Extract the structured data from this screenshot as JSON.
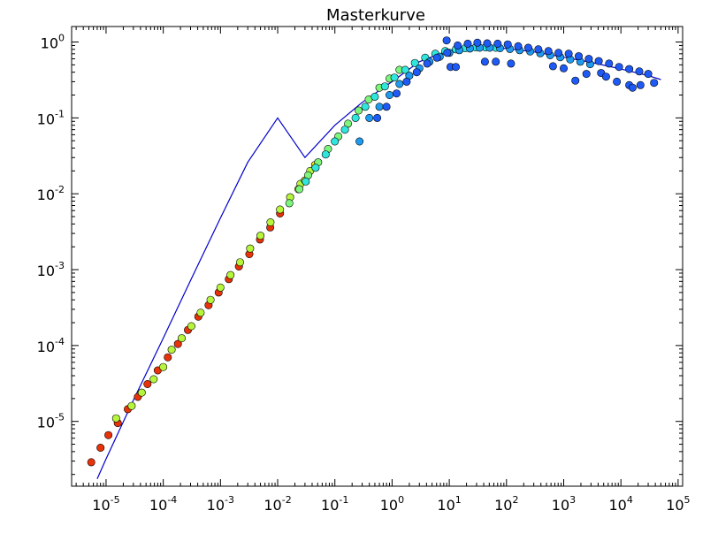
{
  "chart_data": {
    "type": "scatter",
    "title": "Masterkurve",
    "xlabel": "",
    "ylabel": "",
    "xscale": "log",
    "yscale": "log",
    "xlim": [
      2.5e-06,
      120000.0
    ],
    "ylim": [
      1.4e-06,
      1.6
    ],
    "grid": false,
    "x_tick_labels": [
      {
        "base": "10",
        "exp": "-5"
      },
      {
        "base": "10",
        "exp": "-4"
      },
      {
        "base": "10",
        "exp": "-3"
      },
      {
        "base": "10",
        "exp": "-2"
      },
      {
        "base": "10",
        "exp": "-1"
      },
      {
        "base": "10",
        "exp": "0"
      },
      {
        "base": "10",
        "exp": "1"
      },
      {
        "base": "10",
        "exp": "2"
      },
      {
        "base": "10",
        "exp": "3"
      },
      {
        "base": "10",
        "exp": "4"
      },
      {
        "base": "10",
        "exp": "5"
      }
    ],
    "y_tick_labels": [
      {
        "base": "10",
        "exp": "-5"
      },
      {
        "base": "10",
        "exp": "-4"
      },
      {
        "base": "10",
        "exp": "-3"
      },
      {
        "base": "10",
        "exp": "-2"
      },
      {
        "base": "10",
        "exp": "-1"
      },
      {
        "base": "10",
        "exp": "0"
      }
    ],
    "series": [
      {
        "name": "red",
        "color": "#e8320a",
        "points": [
          [
            5.5e-06,
            2.9e-06
          ],
          [
            8e-06,
            4.5e-06
          ],
          [
            1.1e-05,
            6.6e-06
          ],
          [
            1.6e-05,
            9.5e-06
          ],
          [
            2.4e-05,
            1.45e-05
          ],
          [
            3.6e-05,
            2.1e-05
          ],
          [
            5.3e-05,
            3.1e-05
          ],
          [
            8e-05,
            4.7e-05
          ],
          [
            0.00012,
            7e-05
          ],
          [
            0.00018,
            0.000105
          ],
          [
            0.00027,
            0.00016
          ],
          [
            0.00041,
            0.00024
          ],
          [
            0.00062,
            0.00034
          ],
          [
            0.00093,
            0.0005
          ],
          [
            0.0014,
            0.00075
          ],
          [
            0.0021,
            0.0011
          ],
          [
            0.0032,
            0.0016
          ],
          [
            0.0049,
            0.0025
          ],
          [
            0.0074,
            0.0036
          ],
          [
            0.011,
            0.0055
          ]
        ]
      },
      {
        "name": "yellow-green",
        "color": "#b6f53c",
        "points": [
          [
            1.5e-05,
            1.1e-05
          ],
          [
            2.8e-05,
            1.6e-05
          ],
          [
            4.2e-05,
            2.4e-05
          ],
          [
            6.8e-05,
            3.6e-05
          ],
          [
            0.0001,
            5.2e-05
          ],
          [
            0.00014,
            8.8e-05
          ],
          [
            0.00021,
            0.000125
          ],
          [
            0.00031,
            0.00018
          ],
          [
            0.00045,
            0.00027
          ],
          [
            0.00067,
            0.0004
          ],
          [
            0.001,
            0.00058
          ],
          [
            0.0015,
            0.00085
          ],
          [
            0.0022,
            0.00125
          ],
          [
            0.0033,
            0.0019
          ],
          [
            0.005,
            0.0028
          ],
          [
            0.0075,
            0.0042
          ],
          [
            0.011,
            0.0062
          ],
          [
            0.0165,
            0.009
          ],
          [
            0.025,
            0.0135
          ],
          [
            0.037,
            0.02
          ]
        ]
      },
      {
        "name": "yellow",
        "color": "#f2f20a",
        "points": [
          [
            0.023,
            0.0115
          ],
          [
            0.03,
            0.015
          ],
          [
            0.045,
            0.024
          ]
        ]
      },
      {
        "name": "green",
        "color": "#7cf57c",
        "points": [
          [
            0.016,
            0.0075
          ],
          [
            0.024,
            0.0115
          ],
          [
            0.034,
            0.0175
          ],
          [
            0.051,
            0.026
          ],
          [
            0.076,
            0.039
          ],
          [
            0.115,
            0.057
          ],
          [
            0.17,
            0.084
          ],
          [
            0.26,
            0.125
          ],
          [
            0.39,
            0.175
          ],
          [
            0.6,
            0.25
          ],
          [
            0.9,
            0.33
          ],
          [
            1.35,
            0.43
          ]
        ]
      },
      {
        "name": "cyan",
        "color": "#2ee6dc",
        "points": [
          [
            0.031,
            0.0145
          ],
          [
            0.046,
            0.022
          ],
          [
            0.069,
            0.033
          ],
          [
            0.1,
            0.049
          ],
          [
            0.15,
            0.07
          ],
          [
            0.23,
            0.1
          ],
          [
            0.34,
            0.14
          ],
          [
            0.5,
            0.19
          ],
          [
            0.75,
            0.26
          ],
          [
            1.1,
            0.34
          ],
          [
            1.7,
            0.43
          ],
          [
            2.5,
            0.53
          ],
          [
            3.8,
            0.62
          ],
          [
            5.7,
            0.7
          ],
          [
            8.5,
            0.76
          ],
          [
            13,
            0.8
          ],
          [
            19,
            0.83
          ],
          [
            29,
            0.85
          ],
          [
            43,
            0.85
          ],
          [
            65,
            0.84
          ]
        ]
      },
      {
        "name": "light-blue",
        "color": "#1e9bf0",
        "points": [
          [
            0.27,
            0.049
          ],
          [
            0.4,
            0.1
          ],
          [
            0.6,
            0.14
          ],
          [
            0.9,
            0.2
          ],
          [
            1.35,
            0.28
          ],
          [
            2.0,
            0.36
          ],
          [
            3.0,
            0.45
          ],
          [
            4.5,
            0.55
          ],
          [
            6.8,
            0.64
          ],
          [
            10,
            0.72
          ],
          [
            15,
            0.78
          ],
          [
            23,
            0.82
          ],
          [
            34,
            0.84
          ],
          [
            51,
            0.84
          ],
          [
            77,
            0.83
          ],
          [
            115,
            0.81
          ],
          [
            170,
            0.78
          ],
          [
            260,
            0.75
          ],
          [
            390,
            0.71
          ],
          [
            580,
            0.67
          ],
          [
            870,
            0.63
          ],
          [
            1300,
            0.59
          ],
          [
            1950,
            0.55
          ],
          [
            2900,
            0.51
          ]
        ]
      },
      {
        "name": "blue",
        "color": "#1e5af5",
        "points": [
          [
            0.55,
            0.1
          ],
          [
            0.8,
            0.14
          ],
          [
            1.2,
            0.21
          ],
          [
            1.8,
            0.3
          ],
          [
            2.7,
            0.4
          ],
          [
            4.1,
            0.52
          ],
          [
            6.1,
            0.62
          ],
          [
            9.2,
            0.72
          ],
          [
            9,
            1.05
          ],
          [
            10.5,
            0.47
          ],
          [
            13,
            0.47
          ],
          [
            14,
            0.9
          ],
          [
            21,
            0.95
          ],
          [
            31,
            0.98
          ],
          [
            46,
            0.96
          ],
          [
            70,
            0.95
          ],
          [
            42,
            0.55
          ],
          [
            65,
            0.55
          ],
          [
            105,
            0.93
          ],
          [
            160,
            0.88
          ],
          [
            120,
            0.52
          ],
          [
            240,
            0.84
          ],
          [
            360,
            0.8
          ],
          [
            540,
            0.76
          ],
          [
            810,
            0.72
          ],
          [
            650,
            0.48
          ],
          [
            1000,
            0.45
          ],
          [
            1220,
            0.7
          ],
          [
            1830,
            0.65
          ],
          [
            1600,
            0.31
          ],
          [
            2500,
            0.38
          ],
          [
            2750,
            0.6
          ],
          [
            4100,
            0.56
          ],
          [
            4500,
            0.39
          ],
          [
            5500,
            0.35
          ],
          [
            6200,
            0.52
          ],
          [
            9300,
            0.47
          ],
          [
            8500,
            0.3
          ],
          [
            14000,
            0.44
          ],
          [
            14000,
            0.27
          ],
          [
            16000,
            0.25
          ],
          [
            21000,
            0.41
          ],
          [
            22000,
            0.27
          ],
          [
            30000,
            0.38
          ],
          [
            38000,
            0.29
          ]
        ]
      }
    ],
    "lines": [
      {
        "name": "model-fit",
        "color": "#0000cc",
        "points": [
          [
            7e-06,
            1.75e-06
          ],
          [
            1e-05,
            3.2e-06
          ],
          [
            3e-05,
            1.9e-05
          ],
          [
            0.0001,
            0.000125
          ],
          [
            0.0003,
            0.00072
          ],
          [
            0.001,
            0.0048
          ],
          [
            0.003,
            0.026
          ],
          [
            0.01,
            0.1
          ],
          [
            0.03,
            0.03
          ],
          [
            0.1,
            0.08
          ],
          [
            0.3,
            0.16
          ],
          [
            1,
            0.3
          ],
          [
            3,
            0.55
          ],
          [
            10,
            0.78
          ],
          [
            20,
            0.85
          ],
          [
            50,
            0.86
          ],
          [
            100,
            0.82
          ],
          [
            300,
            0.74
          ],
          [
            1000,
            0.63
          ],
          [
            3000,
            0.54
          ],
          [
            10000,
            0.44
          ],
          [
            30000,
            0.36
          ],
          [
            50000,
            0.32
          ]
        ]
      }
    ]
  }
}
